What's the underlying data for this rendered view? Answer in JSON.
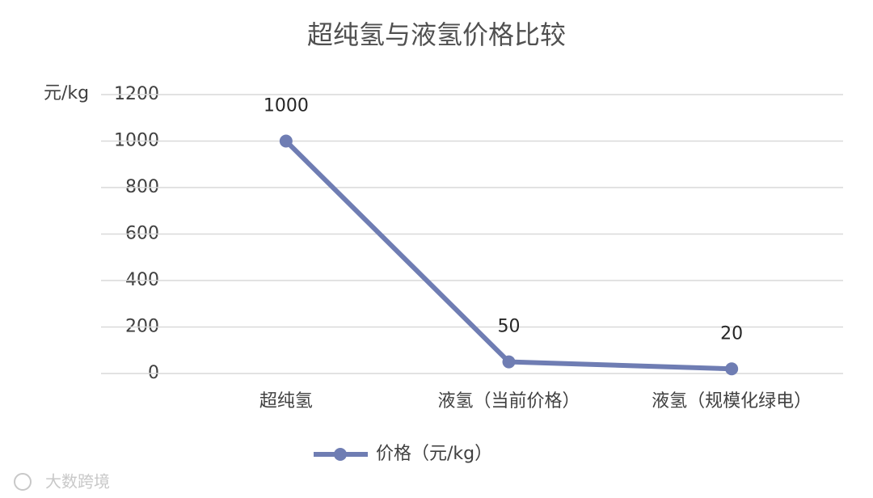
{
  "chart_data": {
    "type": "line",
    "title": "超纯氢与液氢价格比较",
    "y_label": "元/kg",
    "categories": [
      "超纯氢",
      "液氢（当前价格）",
      "液氢（规模化绿电）"
    ],
    "series": [
      {
        "name": "价格（元/kg）",
        "color": "#6f7db3",
        "values": [
          1000,
          50,
          20
        ]
      }
    ],
    "ylim": [
      0,
      1200
    ],
    "yticks": [
      0,
      200,
      400,
      600,
      800,
      1000,
      1200
    ],
    "grid": true,
    "legend": "bottom",
    "watermark": "大数跨境"
  }
}
